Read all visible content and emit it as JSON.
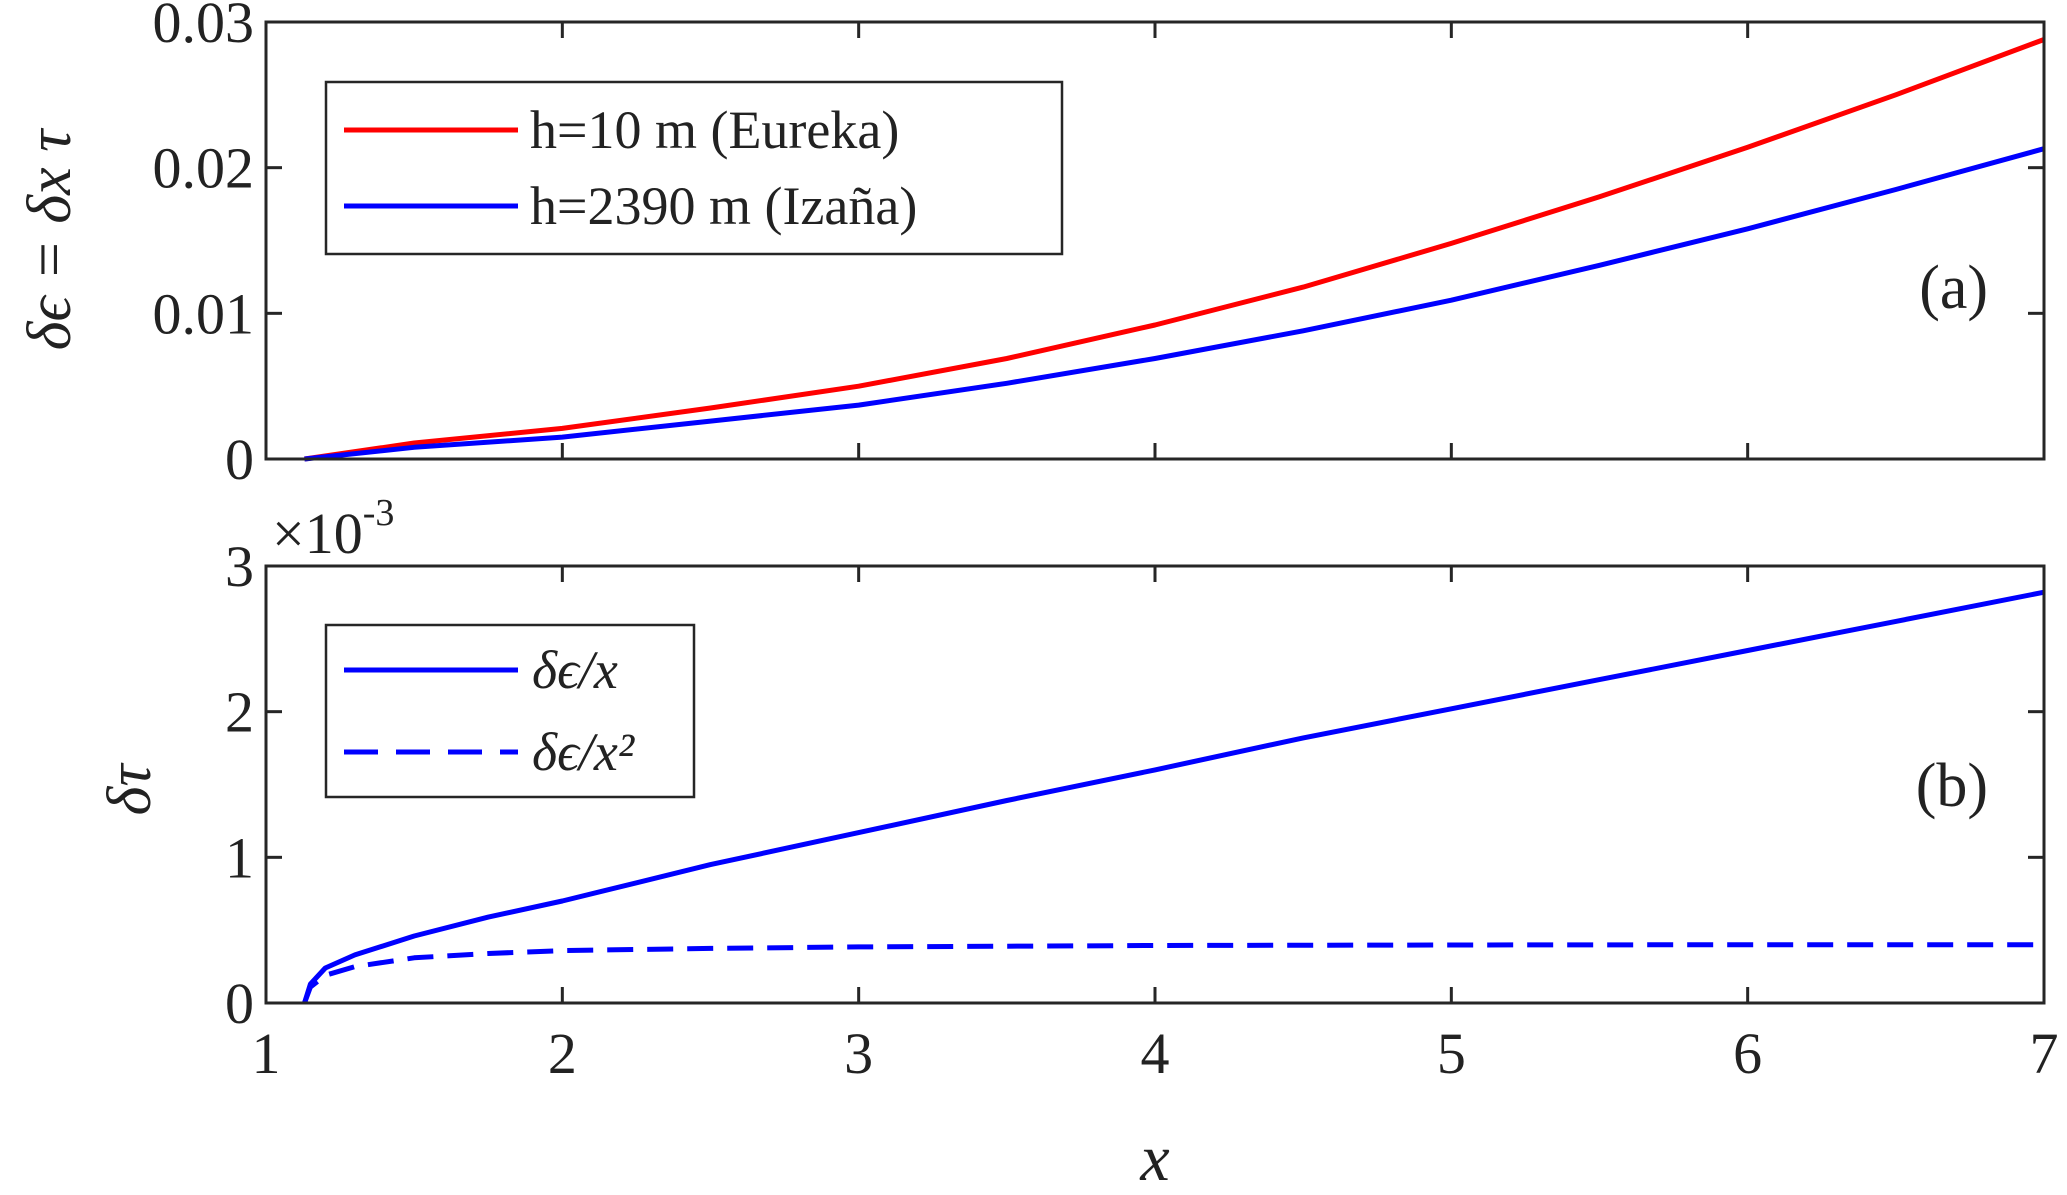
{
  "chart_data": [
    {
      "panel": "a",
      "type": "line",
      "panel_label": "(a)",
      "ylabel": "δϵ = δx τ",
      "xlim": [
        1,
        7
      ],
      "ylim": [
        0,
        0.03
      ],
      "yticks": [
        0,
        0.01,
        0.02,
        0.03
      ],
      "ytick_labels": [
        "0",
        "0.01",
        "0.02",
        "0.03"
      ],
      "show_xtick_labels": false,
      "legend_position": "top-left",
      "series": [
        {
          "name": "h=10 m (Eureka)",
          "color": "#ff0000",
          "dash": "solid",
          "x": [
            1.13,
            1.5,
            2.0,
            2.5,
            3.0,
            3.5,
            4.0,
            4.5,
            5.0,
            5.5,
            6.0,
            6.5,
            7.0
          ],
          "y": [
            0.0,
            0.0011,
            0.0021,
            0.0035,
            0.005,
            0.0069,
            0.0092,
            0.0118,
            0.0148,
            0.018,
            0.0214,
            0.025,
            0.0288
          ]
        },
        {
          "name": "h=2390 m (Izaña)",
          "color": "#0000ff",
          "dash": "solid",
          "x": [
            1.13,
            1.5,
            2.0,
            2.5,
            3.0,
            3.5,
            4.0,
            4.5,
            5.0,
            5.5,
            6.0,
            6.5,
            7.0
          ],
          "y": [
            0.0,
            0.0008,
            0.0015,
            0.0026,
            0.0037,
            0.0052,
            0.0069,
            0.0088,
            0.0109,
            0.0133,
            0.0158,
            0.0185,
            0.0213
          ]
        }
      ]
    },
    {
      "panel": "b",
      "type": "line",
      "panel_label": "(b)",
      "ylabel": "δτ",
      "xlabel": "x",
      "xlim": [
        1,
        7
      ],
      "ylim": [
        0,
        3
      ],
      "yticks": [
        0,
        1,
        2,
        3
      ],
      "ytick_labels": [
        "0",
        "1",
        "2",
        "3"
      ],
      "xticks": [
        1,
        2,
        3,
        4,
        5,
        6,
        7
      ],
      "xtick_labels": [
        "1",
        "2",
        "3",
        "4",
        "5",
        "6",
        "7"
      ],
      "scale_factor_label": "×10",
      "scale_exponent": "-3",
      "legend_position": "top-left",
      "series": [
        {
          "name": "δϵ/x",
          "color": "#0000ff",
          "dash": "solid",
          "x": [
            1.13,
            1.15,
            1.2,
            1.3,
            1.5,
            1.75,
            2.0,
            2.5,
            3.0,
            3.5,
            4.0,
            4.5,
            5.0,
            5.5,
            6.0,
            6.5,
            7.0
          ],
          "y": [
            0.0,
            0.13,
            0.24,
            0.33,
            0.46,
            0.59,
            0.7,
            0.95,
            1.17,
            1.39,
            1.6,
            1.82,
            2.02,
            2.22,
            2.42,
            2.62,
            2.82
          ]
        },
        {
          "name": "δϵ/x²",
          "color": "#0000ff",
          "dash": "dashed",
          "x": [
            1.13,
            1.15,
            1.2,
            1.3,
            1.5,
            1.75,
            2.0,
            2.5,
            3.0,
            3.5,
            4.0,
            5.0,
            6.0,
            7.0
          ],
          "y": [
            0.0,
            0.11,
            0.19,
            0.25,
            0.31,
            0.34,
            0.36,
            0.375,
            0.385,
            0.39,
            0.395,
            0.398,
            0.4,
            0.4
          ]
        }
      ]
    }
  ]
}
